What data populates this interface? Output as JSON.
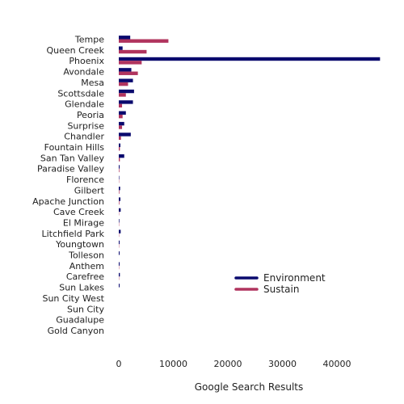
{
  "chart_data": {
    "type": "bar",
    "orientation": "horizontal",
    "title": "",
    "xlabel": "Google Search Results",
    "ylabel": "",
    "xlim": [
      0,
      48000
    ],
    "x_ticks": [
      0,
      10000,
      20000,
      30000,
      40000
    ],
    "x_tick_labels": [
      "0",
      "10000",
      "20000",
      "30000",
      "40000"
    ],
    "grid": false,
    "legend_position": "bottom-right",
    "categories": [
      "Tempe",
      "Queen Creek",
      "Phoenix",
      "Avondale",
      "Mesa",
      "Scottsdale",
      "Glendale",
      "Peoria",
      "Surprise",
      "Chandler",
      "Fountain Hills",
      "San Tan Valley",
      "Paradise Valley",
      "Florence",
      "Gilbert",
      "Apache Junction",
      "Cave Creek",
      "El Mirage",
      "Litchfield Park",
      "Youngtown",
      "Tolleson",
      "Anthem",
      "Carefree",
      "Sun Lakes",
      "Sun City West",
      "Sun City",
      "Guadalupe",
      "Gold Canyon"
    ],
    "series": [
      {
        "name": "Environment",
        "color": "#0a0a6e",
        "values": [
          2100,
          700,
          47900,
          2300,
          2600,
          2800,
          2600,
          1300,
          1000,
          2200,
          300,
          1000,
          150,
          80,
          250,
          300,
          350,
          100,
          350,
          150,
          150,
          150,
          200,
          150,
          0,
          0,
          0,
          0
        ]
      },
      {
        "name": "Sustain",
        "color": "#b0345e",
        "values": [
          9100,
          5100,
          4200,
          3500,
          1700,
          1300,
          600,
          700,
          600,
          400,
          200,
          200,
          100,
          50,
          100,
          100,
          50,
          50,
          50,
          50,
          0,
          50,
          50,
          0,
          0,
          0,
          0,
          0
        ]
      }
    ]
  }
}
